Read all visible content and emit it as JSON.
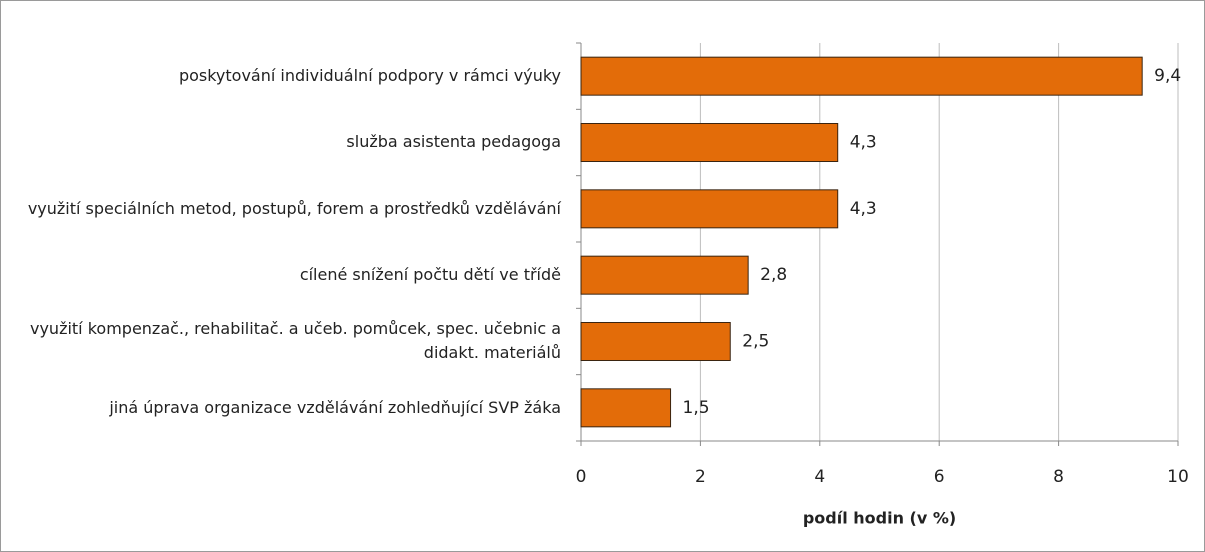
{
  "chart_data": {
    "type": "bar",
    "orientation": "horizontal",
    "categories": [
      "poskytování individuální podpory v rámci výuky",
      "služba asistenta pedagoga",
      "využití speciálních metod, postupů, forem a prostředků vzdělávání",
      "cílené snížení počtu dětí ve třídě",
      "využití kompenzač., rehabilitač. a učeb. pomůcek, spec. učebnic a didakt. materiálů",
      "jiná úprava organizace vzdělávání zohledňující SVP žáka"
    ],
    "values": [
      9.4,
      4.3,
      4.3,
      2.8,
      2.5,
      1.5
    ],
    "value_labels": [
      "9,4",
      "4,3",
      "4,3",
      "2,8",
      "2,5",
      "1,5"
    ],
    "color": "#e36c09",
    "xlabel": "podíl hodin (v %)",
    "xlim": [
      0,
      10
    ],
    "xticks": [
      0,
      2,
      4,
      6,
      8,
      10
    ],
    "grid": true
  }
}
